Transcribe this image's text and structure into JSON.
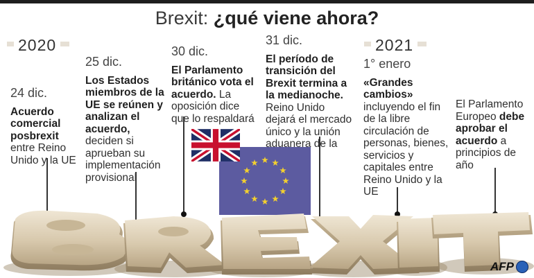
{
  "title": {
    "prefix": "Brexit:",
    "bold": "¿qué viene ahora?"
  },
  "years": {
    "y2020": "2020",
    "y2021": "2021"
  },
  "events": [
    {
      "date": "24 dic.",
      "bold": "Acuerdo comercial posbrexit",
      "rest": "entre Reino Unido y la UE"
    },
    {
      "date": "25 dic.",
      "bold": "Los Estados miembros de la UE se reúnen y analizan el acuerdo,",
      "rest": "deciden si aprueban su implementación provisional"
    },
    {
      "date": "30 dic.",
      "bold": "El Parlamento británico vota el acuerdo.",
      "rest": "La oposición dice que lo respaldará"
    },
    {
      "date": "31 dic.",
      "bold": "El período de transición del Brexit termina a la medianoche.",
      "rest": "Reino Unido dejará el mercado único y la unión aduanera de la UE"
    },
    {
      "date": "1° enero",
      "bold": "«Grandes cambios»",
      "rest": "incluyendo el fin de la libre circulación de personas, bienes, servicios y capitales entre Reino Unido y la UE"
    },
    {
      "date": "",
      "pre": "El Parlamento Europeo",
      "bold": "debe aprobar el acuerdo",
      "rest": "a principios de año"
    }
  ],
  "brexit_word": "BREXIT",
  "credit": "AFP",
  "colors": {
    "eu_blue": "#5c5ba0",
    "eu_star": "#f2cf2f",
    "uk_blue": "#1f2f66",
    "uk_red": "#c8102e",
    "letter": "#ddd0b8"
  }
}
